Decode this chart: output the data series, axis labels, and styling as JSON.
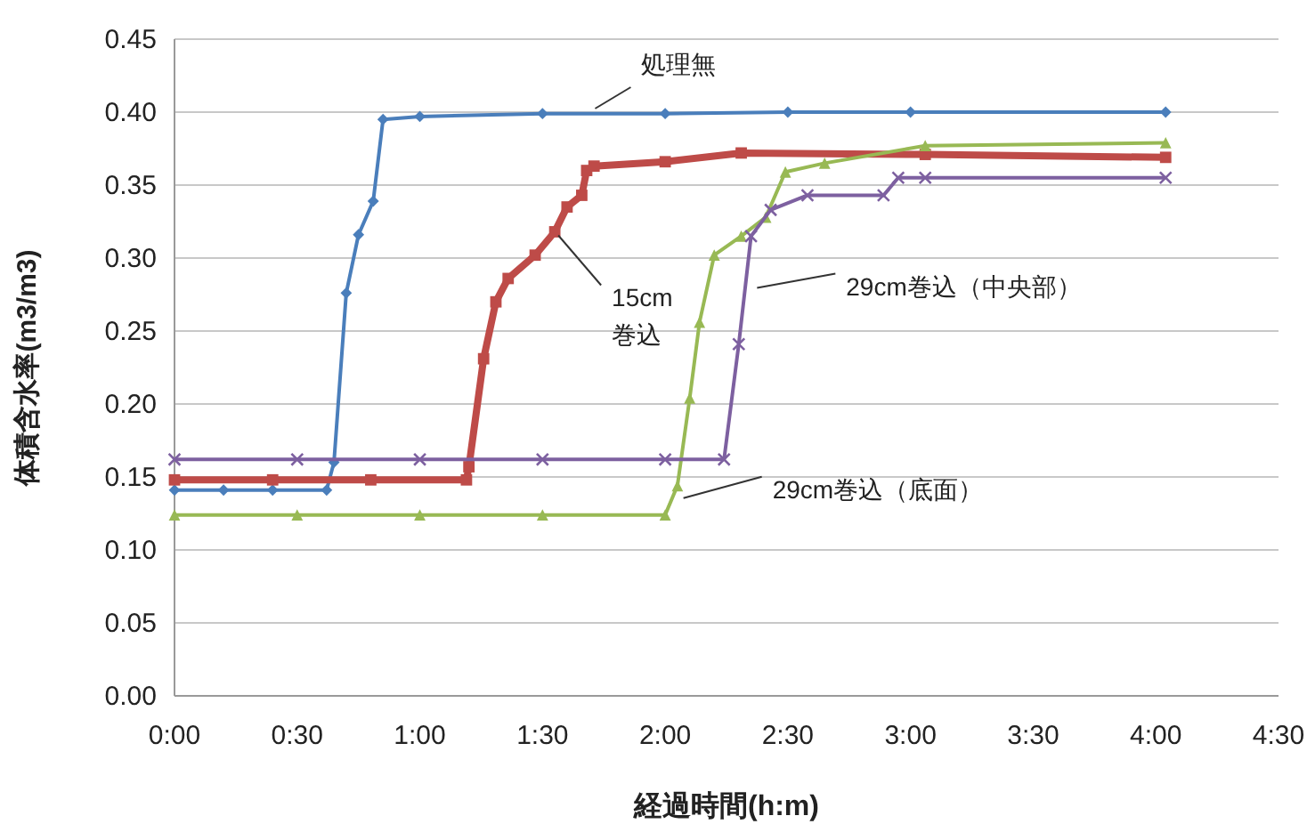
{
  "chart_data": {
    "type": "line",
    "xlabel": "経過時間(h:m)",
    "ylabel": "体積含水率(m3/m3)",
    "xlim": [
      0,
      4.5
    ],
    "ylim": [
      0,
      0.45
    ],
    "xticks": [
      {
        "value": 0,
        "label": "0:00"
      },
      {
        "value": 0.5,
        "label": "0:30"
      },
      {
        "value": 1,
        "label": "1:00"
      },
      {
        "value": 1.5,
        "label": "1:30"
      },
      {
        "value": 2,
        "label": "2:00"
      },
      {
        "value": 2.5,
        "label": "2:30"
      },
      {
        "value": 3,
        "label": "3:00"
      },
      {
        "value": 3.5,
        "label": "3:30"
      },
      {
        "value": 4,
        "label": "4:00"
      },
      {
        "value": 4.5,
        "label": "4:30"
      }
    ],
    "yticks": [
      {
        "value": 0,
        "label": "0.00"
      },
      {
        "value": 0.05,
        "label": "0.05"
      },
      {
        "value": 0.1,
        "label": "0.10"
      },
      {
        "value": 0.15,
        "label": "0.15"
      },
      {
        "value": 0.2,
        "label": "0.20"
      },
      {
        "value": 0.25,
        "label": "0.25"
      },
      {
        "value": 0.3,
        "label": "0.30"
      },
      {
        "value": 0.35,
        "label": "0.35"
      },
      {
        "value": 0.4,
        "label": "0.40"
      },
      {
        "value": 0.45,
        "label": "0.45"
      }
    ],
    "grid": "y",
    "series": [
      {
        "color": "#4a7ebb",
        "marker": "diamond",
        "x": [
          0,
          0.2,
          0.4,
          0.62,
          0.65,
          0.7,
          0.75,
          0.81,
          0.85,
          1.0,
          1.5,
          2.0,
          2.5,
          3.0,
          4.04
        ],
        "values": [
          0.141,
          0.141,
          0.141,
          0.141,
          0.16,
          0.276,
          0.316,
          0.339,
          0.395,
          0.397,
          0.399,
          0.399,
          0.4,
          0.4,
          0.4
        ]
      },
      {
        "color": "#be4b48",
        "marker": "square",
        "x": [
          0,
          0.4,
          0.8,
          1.19,
          1.2,
          1.26,
          1.31,
          1.36,
          1.47,
          1.55,
          1.6,
          1.66,
          1.68,
          1.71,
          2.0,
          2.31,
          3.06,
          4.04
        ],
        "values": [
          0.148,
          0.148,
          0.148,
          0.148,
          0.157,
          0.231,
          0.27,
          0.286,
          0.302,
          0.318,
          0.335,
          0.343,
          0.36,
          0.363,
          0.366,
          0.372,
          0.371,
          0.369
        ]
      },
      {
        "color": "#98b954",
        "marker": "triangle",
        "x": [
          0,
          0.5,
          1.0,
          1.5,
          2.0,
          2.05,
          2.1,
          2.14,
          2.2,
          2.31,
          2.41,
          2.49,
          2.65,
          3.06,
          4.04
        ],
        "values": [
          0.124,
          0.124,
          0.124,
          0.124,
          0.124,
          0.144,
          0.204,
          0.256,
          0.302,
          0.315,
          0.328,
          0.359,
          0.365,
          0.377,
          0.379
        ]
      },
      {
        "color": "#7d60a0",
        "marker": "cross",
        "x": [
          0,
          0.5,
          1.0,
          1.5,
          2.0,
          2.24,
          2.3,
          2.35,
          2.43,
          2.58,
          2.89,
          2.95,
          3.06,
          4.04
        ],
        "values": [
          0.162,
          0.162,
          0.162,
          0.162,
          0.162,
          0.162,
          0.241,
          0.315,
          0.333,
          0.343,
          0.343,
          0.355,
          0.355,
          0.355
        ]
      }
    ],
    "annotations": [
      {
        "text": "処理無",
        "x": 1.7,
        "y": 0.4
      },
      {
        "text": "15cm 巻込",
        "x": 1.55,
        "y": 0.318
      },
      {
        "text": "29cm巻込（中央部）",
        "x": 2.36,
        "y": 0.282
      },
      {
        "text": "29cm巻込（底面）",
        "x": 2.06,
        "y": 0.138
      }
    ]
  }
}
